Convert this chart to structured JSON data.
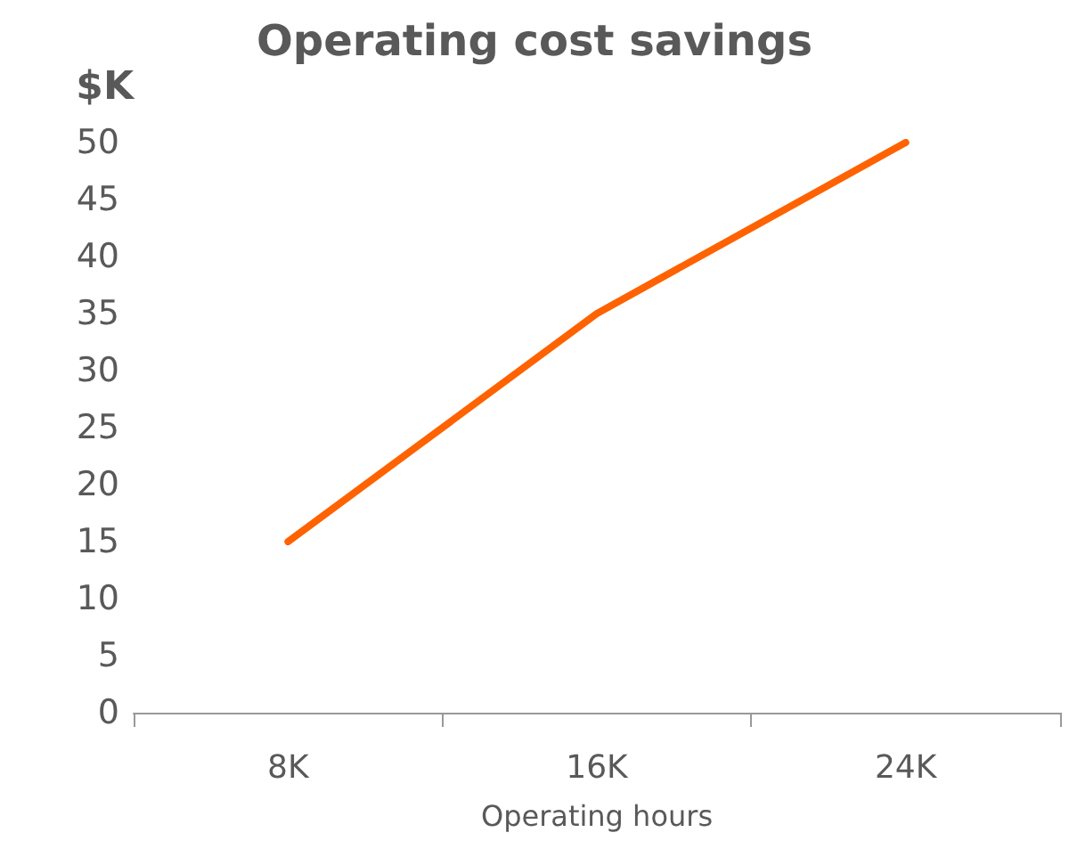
{
  "chart_data": {
    "type": "line",
    "title": "Operating cost savings",
    "ylabel": "$K",
    "xlabel": "Operating hours",
    "categories": [
      "8K",
      "16K",
      "24K"
    ],
    "series": [
      {
        "color": "#ff6200",
        "values": [
          15,
          35,
          50
        ]
      }
    ],
    "ylim": [
      0,
      50
    ],
    "yticks": [
      0,
      5,
      10,
      15,
      20,
      25,
      30,
      35,
      40,
      45,
      50
    ],
    "grid": false,
    "marker": "none",
    "line_style": "solid"
  }
}
